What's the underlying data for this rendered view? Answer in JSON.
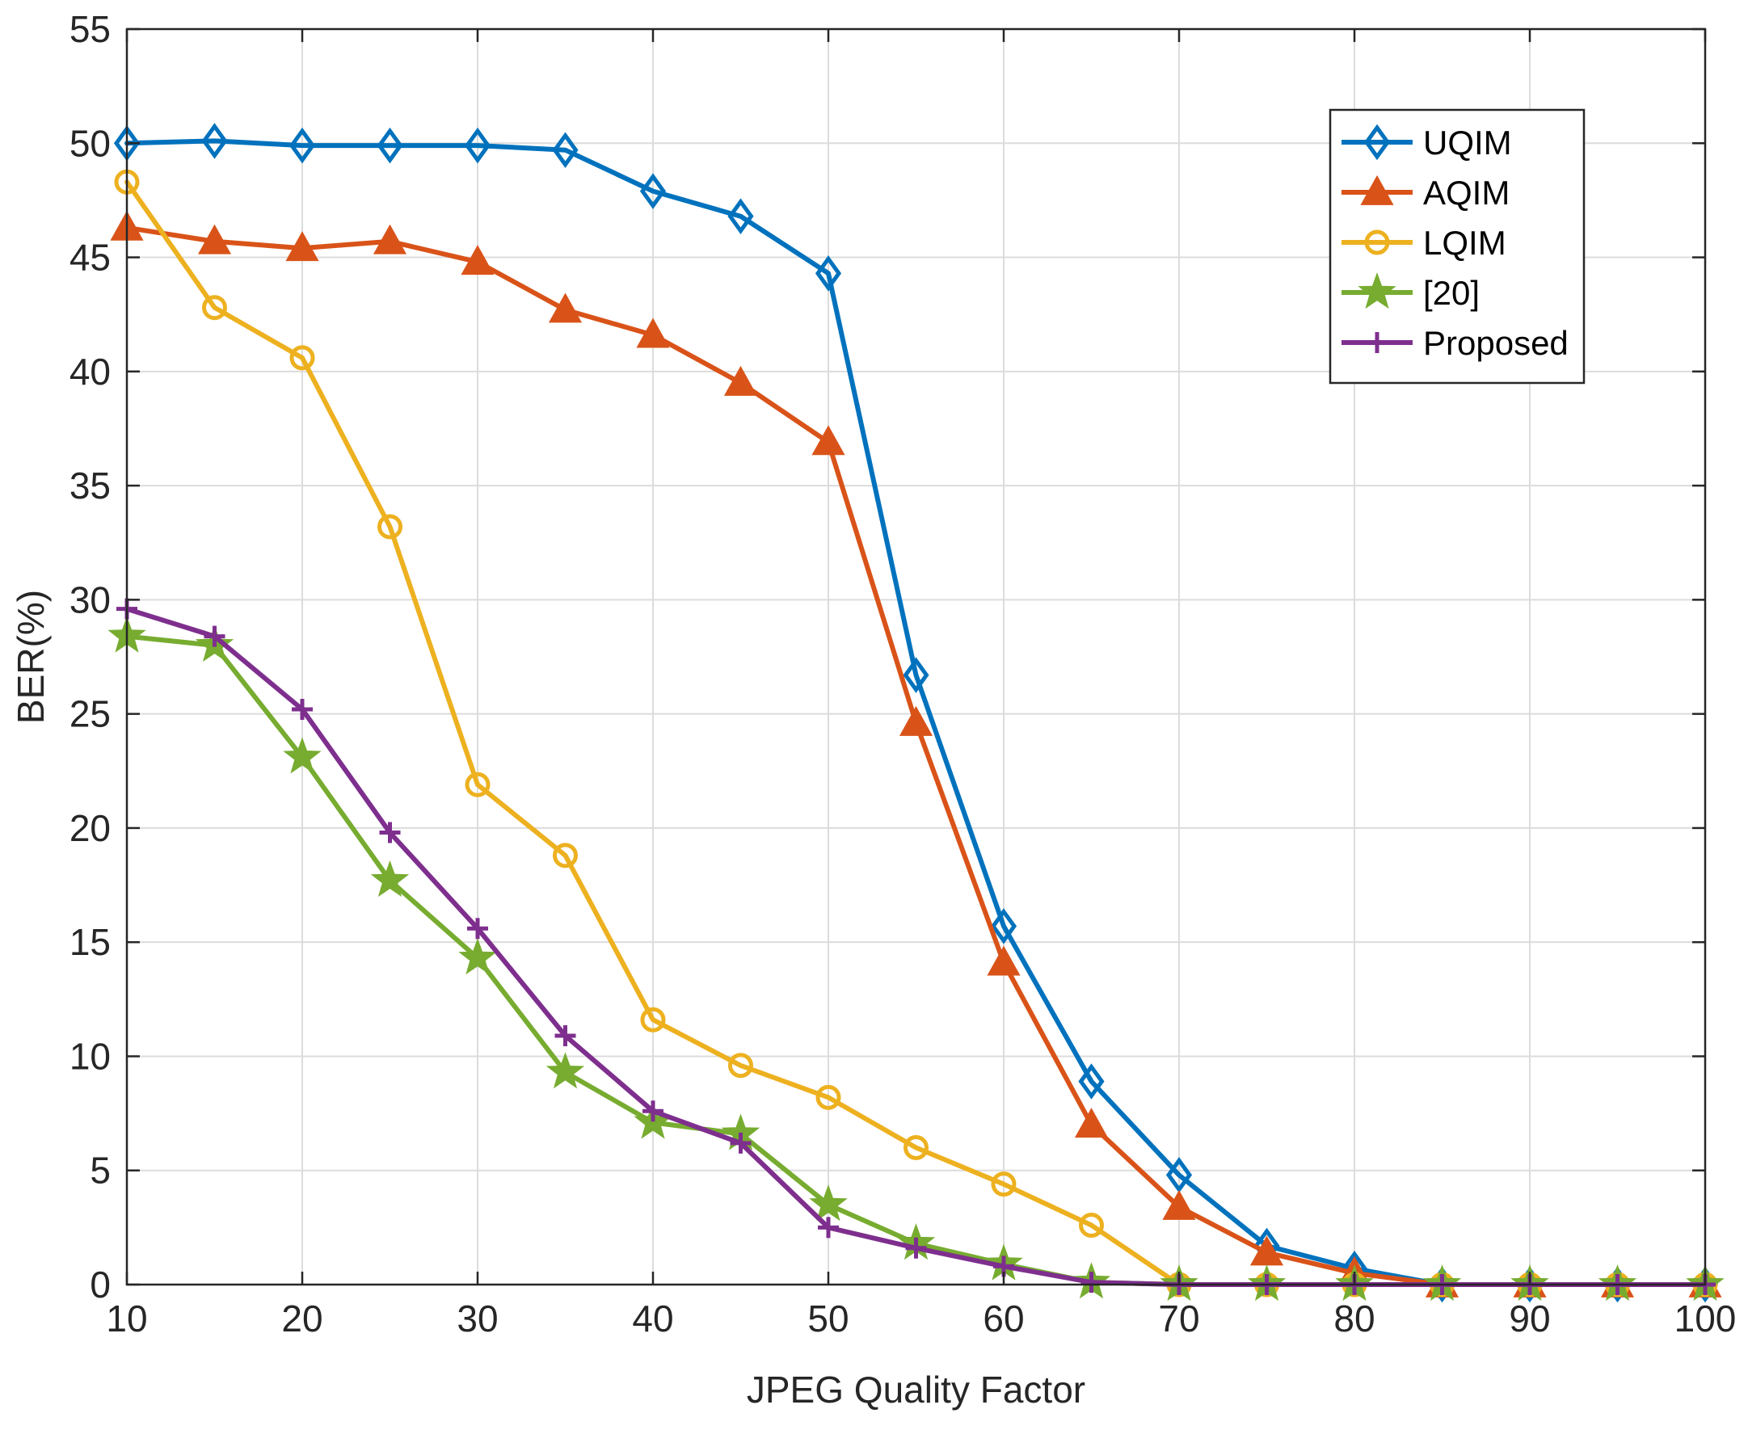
{
  "chart_data": {
    "type": "line",
    "title": "",
    "xlabel": "JPEG Quality Factor",
    "ylabel": "BER(%)",
    "xlim": [
      10,
      100
    ],
    "ylim": [
      0,
      55
    ],
    "grid": true,
    "legend_position": "top-right",
    "x": [
      10,
      15,
      20,
      25,
      30,
      35,
      40,
      45,
      50,
      55,
      60,
      65,
      70,
      75,
      80,
      85,
      90,
      95,
      100
    ],
    "x_ticks": [
      10,
      20,
      30,
      40,
      50,
      60,
      70,
      80,
      90,
      100
    ],
    "y_ticks": [
      0,
      5,
      10,
      15,
      20,
      25,
      30,
      35,
      40,
      45,
      50,
      55
    ],
    "series": [
      {
        "name": "UQIM",
        "color": "#0072BD",
        "marker": "diamond",
        "values": [
          50.0,
          50.1,
          49.9,
          49.9,
          49.9,
          49.7,
          47.9,
          46.8,
          44.3,
          26.7,
          15.7,
          8.9,
          4.8,
          1.7,
          0.7,
          0.0,
          0.0,
          0.0,
          0.0
        ]
      },
      {
        "name": "AQIM",
        "color": "#D95319",
        "marker": "triangle",
        "values": [
          46.3,
          45.7,
          45.4,
          45.7,
          44.8,
          42.7,
          41.6,
          39.5,
          36.9,
          24.6,
          14.1,
          7.0,
          3.4,
          1.4,
          0.5,
          0.0,
          0.0,
          0.0,
          0.0
        ]
      },
      {
        "name": "LQIM",
        "color": "#EDB120",
        "marker": "circle",
        "values": [
          48.3,
          42.8,
          40.6,
          33.2,
          21.9,
          18.8,
          11.6,
          9.6,
          8.2,
          6.0,
          4.4,
          2.6,
          0.0,
          0.0,
          0.0,
          0.0,
          0.0,
          0.0,
          0.0
        ]
      },
      {
        "name": "[20]",
        "color": "#77AC30",
        "marker": "star",
        "values": [
          28.4,
          28.0,
          23.1,
          17.7,
          14.3,
          9.3,
          7.1,
          6.6,
          3.5,
          1.8,
          0.9,
          0.1,
          0.0,
          0.0,
          0.0,
          0.0,
          0.0,
          0.0,
          0.0
        ]
      },
      {
        "name": "Proposed",
        "color": "#7E2F8E",
        "marker": "plus",
        "values": [
          29.6,
          28.4,
          25.2,
          19.8,
          15.6,
          10.9,
          7.6,
          6.2,
          2.5,
          1.6,
          0.8,
          0.1,
          0.0,
          0.0,
          0.0,
          0.0,
          0.0,
          0.0,
          0.0
        ]
      }
    ]
  }
}
